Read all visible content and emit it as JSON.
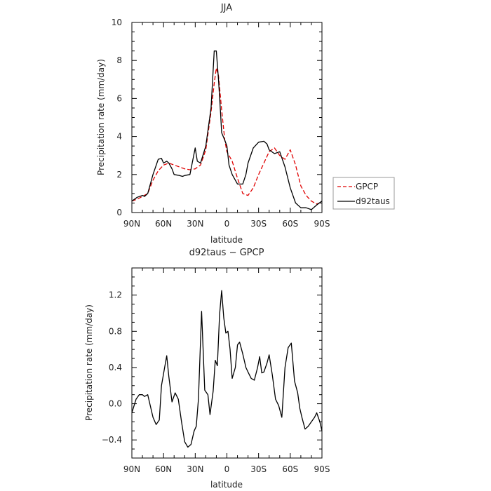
{
  "chart_data": [
    {
      "type": "line",
      "title": "JJA",
      "xlabel": "latitude",
      "ylabel": "Precipitation rate (mm/day)",
      "xlim": [
        90,
        -90
      ],
      "ylim": [
        0,
        10
      ],
      "xticks": [
        90,
        60,
        30,
        0,
        -30,
        -60,
        -90
      ],
      "xtick_labels": [
        "90N",
        "60N",
        "30N",
        "0",
        "30S",
        "60S",
        "90S"
      ],
      "yticks": [
        0,
        2,
        4,
        6,
        8,
        10
      ],
      "ytick_labels": [
        "0",
        "2",
        "4",
        "6",
        "8",
        "10"
      ],
      "grid": false,
      "legend": "right, outside",
      "series": [
        {
          "name": "GPCP",
          "color": "#e00000",
          "dash": "dashed",
          "x": [
            90,
            85,
            80,
            75,
            70,
            65,
            60,
            55,
            50,
            45,
            40,
            35,
            30,
            25,
            20,
            15,
            12,
            10,
            8,
            5,
            2,
            0,
            -2,
            -5,
            -10,
            -15,
            -20,
            -25,
            -30,
            -35,
            -40,
            -45,
            -50,
            -55,
            -60,
            -65,
            -70,
            -75,
            -80,
            -85,
            -90
          ],
          "y": [
            0.6,
            0.7,
            0.85,
            1.0,
            1.7,
            2.2,
            2.5,
            2.6,
            2.5,
            2.4,
            2.3,
            2.25,
            2.3,
            2.5,
            3.3,
            5.3,
            6.8,
            7.6,
            7.2,
            5.4,
            3.8,
            3.2,
            3.0,
            2.7,
            1.8,
            1.0,
            0.9,
            1.3,
            2.0,
            2.6,
            3.2,
            3.4,
            3.0,
            2.8,
            3.3,
            2.5,
            1.4,
            0.9,
            0.6,
            0.45,
            0.55
          ]
        },
        {
          "name": "d92taus",
          "color": "#000000",
          "dash": "solid",
          "x": [
            90,
            85,
            80,
            78,
            75,
            70,
            65,
            62,
            60,
            57,
            55,
            52,
            50,
            45,
            42,
            40,
            35,
            30,
            28,
            25,
            20,
            15,
            12,
            10,
            8,
            6,
            5,
            2,
            0,
            -2,
            -5,
            -10,
            -15,
            -18,
            -20,
            -25,
            -30,
            -35,
            -38,
            -40,
            -45,
            -50,
            -55,
            -60,
            -65,
            -70,
            -75,
            -80,
            -85,
            -90
          ],
          "y": [
            0.6,
            0.8,
            0.9,
            0.85,
            1.0,
            2.0,
            2.8,
            2.85,
            2.6,
            2.7,
            2.6,
            2.3,
            2.0,
            1.95,
            1.9,
            1.95,
            2.0,
            3.4,
            2.7,
            2.6,
            3.5,
            5.5,
            8.5,
            8.5,
            7.0,
            5.2,
            4.2,
            3.8,
            3.5,
            2.5,
            2.0,
            1.5,
            1.5,
            2.0,
            2.6,
            3.4,
            3.7,
            3.75,
            3.6,
            3.3,
            3.1,
            3.2,
            2.4,
            1.3,
            0.5,
            0.25,
            0.25,
            0.15,
            0.4,
            0.6
          ]
        }
      ]
    },
    {
      "type": "line",
      "title": "d92taus − GPCP",
      "xlabel": "latitude",
      "ylabel": "Precipitation rate (mm/day)",
      "xlim": [
        90,
        -90
      ],
      "ylim": [
        -0.6,
        1.5
      ],
      "xticks": [
        90,
        60,
        30,
        0,
        -30,
        -60,
        -90
      ],
      "xtick_labels": [
        "90N",
        "60N",
        "30N",
        "0",
        "30S",
        "60S",
        "90S"
      ],
      "yticks": [
        -0.4,
        0.0,
        0.4,
        0.8,
        1.2
      ],
      "ytick_labels": [
        "−0.4",
        "0.0",
        "0.4",
        "0.8",
        "1.2"
      ],
      "grid": false,
      "series": [
        {
          "color": "#000000",
          "dash": "solid",
          "x": [
            90,
            86,
            83,
            80,
            78,
            75,
            72,
            70,
            67,
            64,
            62,
            59,
            57,
            55,
            52,
            49,
            46,
            43,
            40,
            37,
            34,
            32,
            31,
            29,
            27,
            24,
            21,
            18,
            16,
            13,
            11,
            9,
            7,
            5,
            3,
            1,
            -1,
            -3,
            -5,
            -8,
            -10,
            -12,
            -15,
            -18,
            -20,
            -23,
            -26,
            -29,
            -31,
            -33,
            -35,
            -38,
            -40,
            -43,
            -46,
            -49,
            -52,
            -55,
            -58,
            -61,
            -64,
            -67,
            -69,
            -71,
            -74,
            -77,
            -80,
            -83,
            -85,
            -88,
            -90
          ],
          "y": [
            -0.1,
            0.05,
            0.1,
            0.1,
            0.08,
            0.1,
            -0.05,
            -0.15,
            -0.23,
            -0.18,
            0.2,
            0.4,
            0.53,
            0.3,
            0.02,
            0.12,
            0.05,
            -0.2,
            -0.42,
            -0.48,
            -0.45,
            -0.35,
            -0.3,
            -0.25,
            0.05,
            1.02,
            0.15,
            0.1,
            -0.12,
            0.14,
            0.48,
            0.42,
            0.98,
            1.25,
            0.95,
            0.78,
            0.8,
            0.6,
            0.28,
            0.4,
            0.65,
            0.68,
            0.55,
            0.4,
            0.35,
            0.28,
            0.26,
            0.4,
            0.52,
            0.34,
            0.35,
            0.45,
            0.54,
            0.32,
            0.05,
            -0.02,
            -0.15,
            0.4,
            0.62,
            0.67,
            0.25,
            0.12,
            -0.05,
            -0.15,
            -0.28,
            -0.25,
            -0.2,
            -0.15,
            -0.1,
            -0.2,
            -0.3
          ]
        }
      ]
    }
  ]
}
